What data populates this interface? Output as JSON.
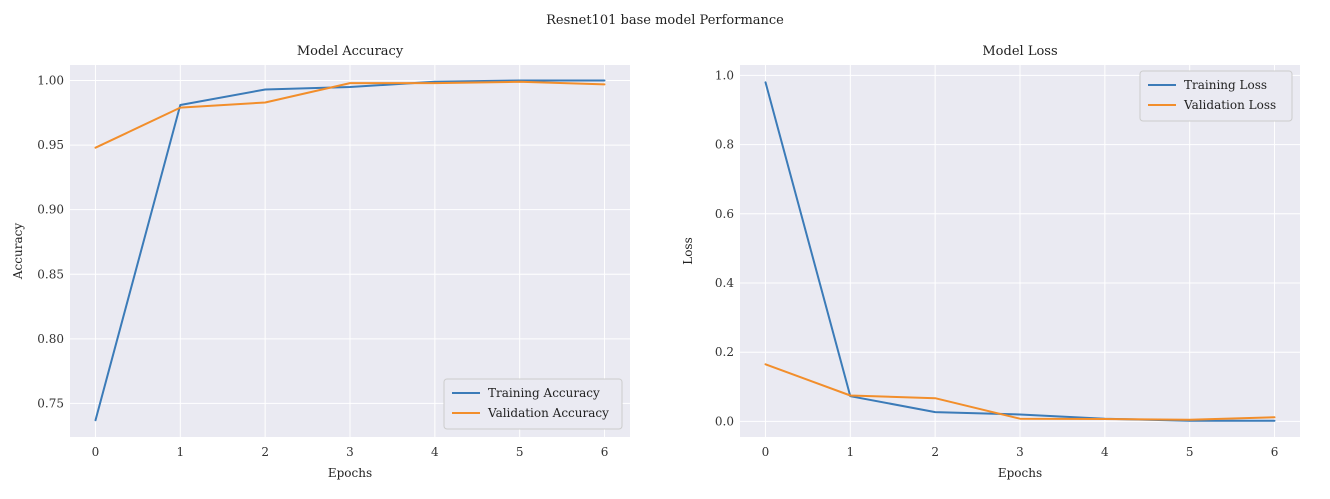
{
  "figure": {
    "title": "Resnet101 base model Performance"
  },
  "chart_data": [
    {
      "type": "line",
      "title": "Model Accuracy",
      "xlabel": "Epochs",
      "ylabel": "Accuracy",
      "x": [
        0,
        1,
        2,
        3,
        4,
        5,
        6
      ],
      "xticks": [
        "0",
        "1",
        "2",
        "3",
        "4",
        "5",
        "6"
      ],
      "yticks": [
        "0.75",
        "0.80",
        "0.85",
        "0.90",
        "0.95",
        "1.00"
      ],
      "ytick_values": [
        0.75,
        0.8,
        0.85,
        0.9,
        0.95,
        1.0
      ],
      "xlim": [
        -0.3,
        6.3
      ],
      "ylim": [
        0.724,
        1.012
      ],
      "grid": true,
      "legend_position": "lower-right",
      "series": [
        {
          "name": "Training Accuracy",
          "color": "#3b7bb8",
          "values": [
            0.737,
            0.981,
            0.993,
            0.995,
            0.999,
            1.0,
            1.0
          ]
        },
        {
          "name": "Validation Accuracy",
          "color": "#f28e2b",
          "values": [
            0.948,
            0.979,
            0.983,
            0.998,
            0.998,
            0.999,
            0.997
          ]
        }
      ]
    },
    {
      "type": "line",
      "title": "Model Loss",
      "xlabel": "Epochs",
      "ylabel": "Loss",
      "x": [
        0,
        1,
        2,
        3,
        4,
        5,
        6
      ],
      "xticks": [
        "0",
        "1",
        "2",
        "3",
        "4",
        "5",
        "6"
      ],
      "yticks": [
        "0.0",
        "0.2",
        "0.4",
        "0.6",
        "0.8",
        "1.0"
      ],
      "ytick_values": [
        0.0,
        0.2,
        0.4,
        0.6,
        0.8,
        1.0
      ],
      "xlim": [
        -0.3,
        6.3
      ],
      "ylim": [
        -0.045,
        1.03
      ],
      "grid": true,
      "legend_position": "upper-right",
      "series": [
        {
          "name": "Training Loss",
          "color": "#3b7bb8",
          "values": [
            0.98,
            0.073,
            0.027,
            0.02,
            0.008,
            0.002,
            0.002
          ]
        },
        {
          "name": "Validation Loss",
          "color": "#f28e2b",
          "values": [
            0.165,
            0.075,
            0.067,
            0.008,
            0.007,
            0.005,
            0.012
          ]
        }
      ]
    }
  ]
}
